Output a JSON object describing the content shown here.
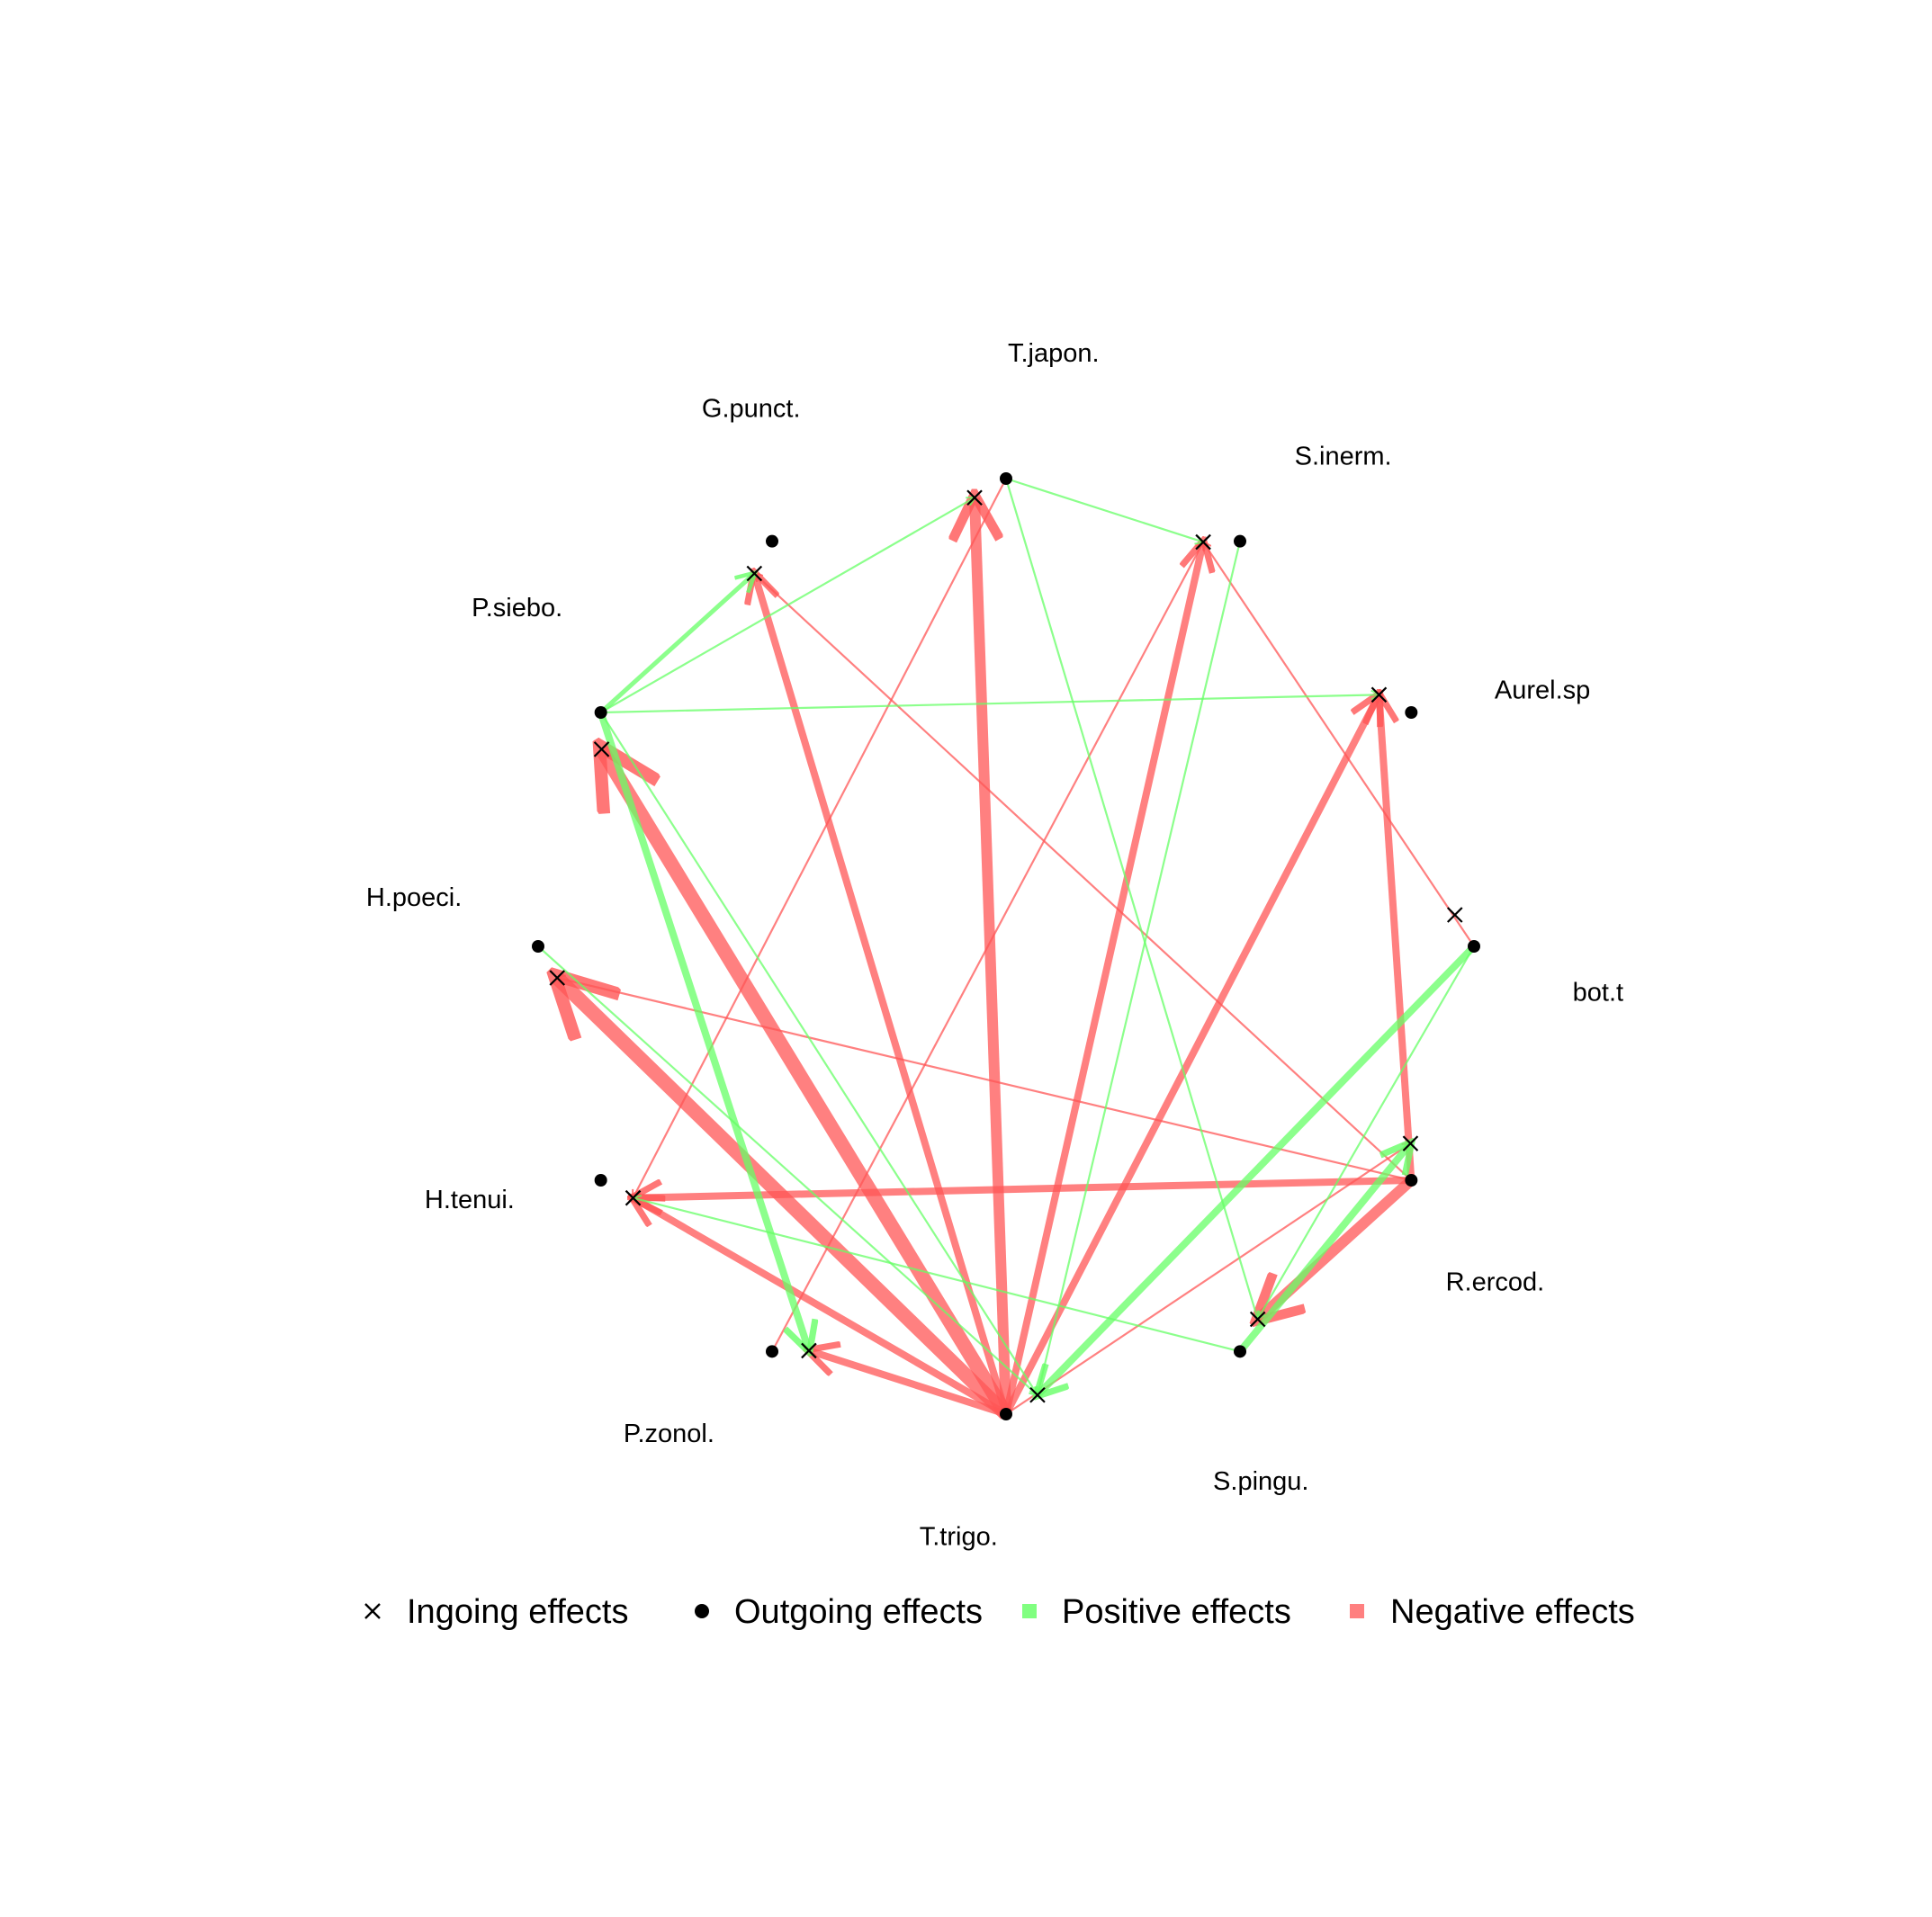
{
  "figure": {
    "nodes": [
      {
        "id": "T.japon.",
        "label": "T.japon."
      },
      {
        "id": "S.inerm.",
        "label": "S.inerm."
      },
      {
        "id": "Aurel.sp",
        "label": "Aurel.sp"
      },
      {
        "id": "bot.t",
        "label": "bot.t"
      },
      {
        "id": "R.ercod.",
        "label": "R.ercod."
      },
      {
        "id": "S.pingu.",
        "label": "S.pingu."
      },
      {
        "id": "T.trigo.",
        "label": "T.trigo."
      },
      {
        "id": "P.zonol.",
        "label": "P.zonol."
      },
      {
        "id": "H.tenui.",
        "label": "H.tenui."
      },
      {
        "id": "H.poeci.",
        "label": "H.poeci."
      },
      {
        "id": "P.siebo.",
        "label": "P.siebo."
      },
      {
        "id": "G.punct.",
        "label": "G.punct."
      }
    ],
    "edges": [
      {
        "from": "T.trigo.",
        "to": "P.siebo.",
        "sign": "negative",
        "strength": 5
      },
      {
        "from": "T.trigo.",
        "to": "H.poeci.",
        "sign": "negative",
        "strength": 5
      },
      {
        "from": "T.trigo.",
        "to": "T.japon.",
        "sign": "negative",
        "strength": 4
      },
      {
        "from": "T.trigo.",
        "to": "G.punct.",
        "sign": "negative",
        "strength": 3
      },
      {
        "from": "T.trigo.",
        "to": "S.inerm.",
        "sign": "negative",
        "strength": 3
      },
      {
        "from": "T.trigo.",
        "to": "Aurel.sp",
        "sign": "negative",
        "strength": 3
      },
      {
        "from": "T.trigo.",
        "to": "P.zonol.",
        "sign": "negative",
        "strength": 3
      },
      {
        "from": "T.trigo.",
        "to": "R.ercod.",
        "sign": "negative",
        "strength": 1
      },
      {
        "from": "T.trigo.",
        "to": "H.tenui.",
        "sign": "negative",
        "strength": 3
      },
      {
        "from": "R.ercod.",
        "to": "H.tenui.",
        "sign": "negative",
        "strength": 3
      },
      {
        "from": "R.ercod.",
        "to": "Aurel.sp",
        "sign": "negative",
        "strength": 3
      },
      {
        "from": "R.ercod.",
        "to": "S.pingu.",
        "sign": "negative",
        "strength": 4
      },
      {
        "from": "R.ercod.",
        "to": "H.poeci.",
        "sign": "negative",
        "strength": 1
      },
      {
        "from": "R.ercod.",
        "to": "G.punct.",
        "sign": "negative",
        "strength": 1
      },
      {
        "from": "T.japon.",
        "to": "H.tenui.",
        "sign": "negative",
        "strength": 1
      },
      {
        "from": "P.zonol.",
        "to": "S.inerm.",
        "sign": "negative",
        "strength": 1
      },
      {
        "from": "bot.t",
        "to": "S.inerm.",
        "sign": "negative",
        "strength": 1
      },
      {
        "from": "P.siebo.",
        "to": "G.punct.",
        "sign": "positive",
        "strength": 2
      },
      {
        "from": "P.siebo.",
        "to": "T.japon.",
        "sign": "positive",
        "strength": 1
      },
      {
        "from": "P.siebo.",
        "to": "Aurel.sp",
        "sign": "positive",
        "strength": 1
      },
      {
        "from": "P.siebo.",
        "to": "P.zonol.",
        "sign": "positive",
        "strength": 3
      },
      {
        "from": "P.siebo.",
        "to": "T.trigo.",
        "sign": "positive",
        "strength": 1
      },
      {
        "from": "T.japon.",
        "to": "S.inerm.",
        "sign": "positive",
        "strength": 1
      },
      {
        "from": "T.japon.",
        "to": "S.pingu.",
        "sign": "positive",
        "strength": 1
      },
      {
        "from": "S.inerm.",
        "to": "T.trigo.",
        "sign": "positive",
        "strength": 1
      },
      {
        "from": "bot.t",
        "to": "T.trigo.",
        "sign": "positive",
        "strength": 3
      },
      {
        "from": "bot.t",
        "to": "S.pingu.",
        "sign": "positive",
        "strength": 1
      },
      {
        "from": "S.pingu.",
        "to": "R.ercod.",
        "sign": "positive",
        "strength": 3
      },
      {
        "from": "S.pingu.",
        "to": "H.tenui.",
        "sign": "positive",
        "strength": 1
      },
      {
        "from": "H.poeci.",
        "to": "T.trigo.",
        "sign": "positive",
        "strength": 1
      }
    ]
  },
  "legend": {
    "ingoing": {
      "label": "Ingoing effects"
    },
    "outgoing": {
      "label": "Outgoing effects"
    },
    "positive": {
      "label": "Positive effects",
      "color": "#80FF80"
    },
    "negative": {
      "label": "Negative effects",
      "color": "#FF8080"
    }
  },
  "colors": {
    "positive": "#66FF66",
    "negative": "#FF5555",
    "marker": "#000000"
  }
}
